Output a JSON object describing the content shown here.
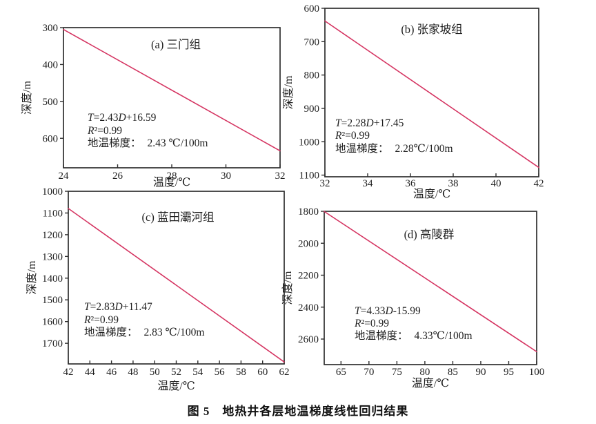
{
  "figure_caption": "图 5　地热井各层地温梯度线性回归结果",
  "colors": {
    "line": "#d53562",
    "axis": "#2e2e2e",
    "text": "#1f1f1f"
  },
  "chart_data": [
    {
      "type": "line",
      "panel_label": "(a) 三门组",
      "xlabel": "温度/℃",
      "ylabel": "深度/m",
      "xlim": [
        24,
        32
      ],
      "ylim": [
        300,
        680
      ],
      "y_axis_direction": "depth-increasing-downward",
      "xticks": [
        24,
        26,
        28,
        30,
        32
      ],
      "yticks": [
        300,
        400,
        500,
        600
      ],
      "series": [
        {
          "name": "linear-regression",
          "x": [
            24,
            32
          ],
          "y": [
            305,
            634
          ]
        }
      ],
      "equation": "T=2.43D+16.59",
      "r_squared": "R²=0.99",
      "gradient_label": "地温梯度：",
      "gradient_value": "2.43 ℃/100m"
    },
    {
      "type": "line",
      "panel_label": "(b) 张家坡组",
      "xlabel": "温度/℃",
      "ylabel": "深度/m",
      "xlim": [
        32,
        42
      ],
      "ylim": [
        600,
        1105
      ],
      "y_axis_direction": "depth-increasing-downward",
      "xticks": [
        32,
        34,
        36,
        38,
        40,
        42
      ],
      "yticks": [
        600,
        700,
        800,
        900,
        1000,
        1100
      ],
      "series": [
        {
          "name": "linear-regression",
          "x": [
            32,
            42
          ],
          "y": [
            638,
            1077
          ]
        }
      ],
      "equation": "T=2.28D+17.45",
      "r_squared": "R²=0.99",
      "gradient_label": "地温梯度：",
      "gradient_value": "2.28℃/100m"
    },
    {
      "type": "line",
      "panel_label": "(c) 蓝田灞河组",
      "xlabel": "温度/℃",
      "ylabel": "深度/m",
      "xlim": [
        42,
        62
      ],
      "ylim": [
        1000,
        1795
      ],
      "y_axis_direction": "depth-increasing-downward",
      "xticks": [
        42,
        44,
        46,
        48,
        50,
        52,
        54,
        56,
        58,
        60,
        62
      ],
      "yticks": [
        1000,
        1100,
        1200,
        1300,
        1400,
        1500,
        1600,
        1700
      ],
      "series": [
        {
          "name": "linear-regression",
          "x": [
            42,
            62
          ],
          "y": [
            1079,
            1786
          ]
        }
      ],
      "equation": "T=2.83D+11.47",
      "r_squared": "R²=0.99",
      "gradient_label": "地温梯度：",
      "gradient_value": "2.83 ℃/100m"
    },
    {
      "type": "line",
      "panel_label": "(d) 高陵群",
      "xlabel": "温度/℃",
      "ylabel": "深度/m",
      "xlim": [
        62,
        100
      ],
      "ylim": [
        1800,
        2760
      ],
      "y_axis_direction": "depth-increasing-downward",
      "xticks": [
        65,
        70,
        75,
        80,
        85,
        90,
        95,
        100
      ],
      "yticks": [
        1800,
        2000,
        2200,
        2400,
        2600
      ],
      "series": [
        {
          "name": "linear-regression",
          "x": [
            62,
            100
          ],
          "y": [
            1801,
            2679
          ]
        }
      ],
      "equation": "T=4.33D-15.99",
      "r_squared": "R²=0.99",
      "gradient_label": "地温梯度：",
      "gradient_value": "4.33℃/100m"
    }
  ]
}
